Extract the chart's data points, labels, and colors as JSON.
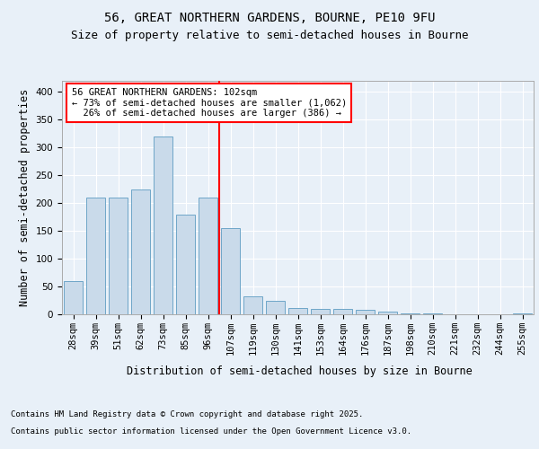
{
  "title1": "56, GREAT NORTHERN GARDENS, BOURNE, PE10 9FU",
  "title2": "Size of property relative to semi-detached houses in Bourne",
  "xlabel": "Distribution of semi-detached houses by size in Bourne",
  "ylabel": "Number of semi-detached properties",
  "categories": [
    "28sqm",
    "39sqm",
    "51sqm",
    "62sqm",
    "73sqm",
    "85sqm",
    "96sqm",
    "107sqm",
    "119sqm",
    "130sqm",
    "141sqm",
    "153sqm",
    "164sqm",
    "176sqm",
    "187sqm",
    "198sqm",
    "210sqm",
    "221sqm",
    "232sqm",
    "244sqm",
    "255sqm"
  ],
  "values": [
    60,
    210,
    210,
    225,
    320,
    180,
    210,
    155,
    33,
    25,
    12,
    10,
    10,
    8,
    5,
    1,
    1,
    0,
    0,
    0,
    1
  ],
  "bar_color": "#c9daea",
  "bar_edge_color": "#6ea6c8",
  "marker_bin_index": 6,
  "marker_color": "red",
  "annotation_text": "56 GREAT NORTHERN GARDENS: 102sqm\n← 73% of semi-detached houses are smaller (1,062)\n  26% of semi-detached houses are larger (386) →",
  "annotation_box_color": "white",
  "annotation_box_edge_color": "red",
  "ylim": [
    0,
    420
  ],
  "yticks": [
    0,
    50,
    100,
    150,
    200,
    250,
    300,
    350,
    400
  ],
  "background_color": "#e8f0f8",
  "footer1": "Contains HM Land Registry data © Crown copyright and database right 2025.",
  "footer2": "Contains public sector information licensed under the Open Government Licence v3.0.",
  "title1_fontsize": 10,
  "title2_fontsize": 9,
  "axis_label_fontsize": 8.5,
  "tick_fontsize": 7.5,
  "annotation_fontsize": 7.5,
  "footer_fontsize": 6.5
}
